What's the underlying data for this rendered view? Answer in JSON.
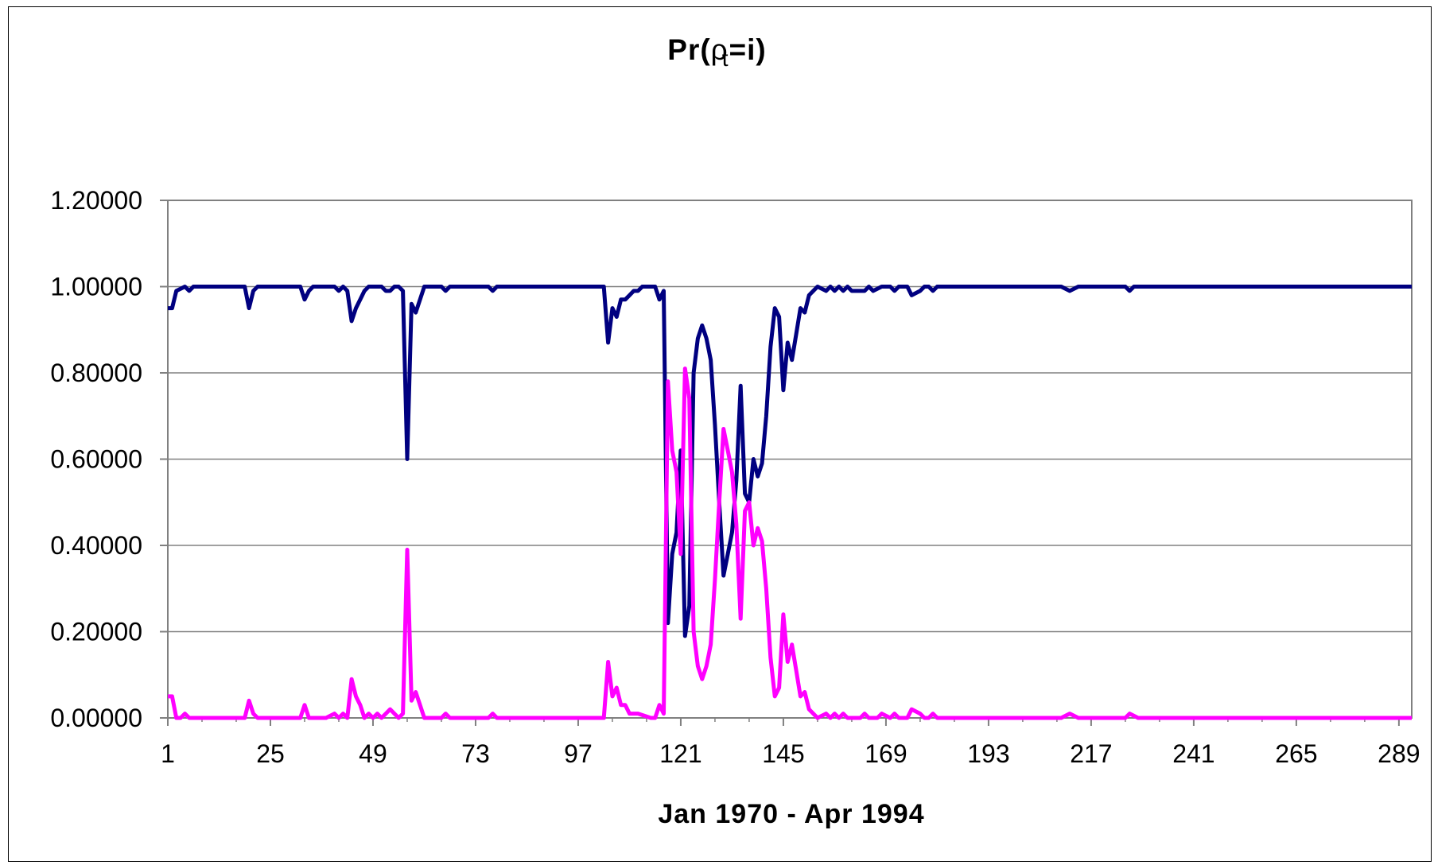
{
  "chart_data": {
    "type": "line",
    "title": "Pr(ρt=i)",
    "title_parts": {
      "prefix": "Pr(",
      "rho": "ρ",
      "sub": "t",
      "suffix": "=i)"
    },
    "xlabel": "Jan 1970 - Apr 1994",
    "ylabel": "",
    "xlim": [
      1,
      292
    ],
    "ylim": [
      0,
      1.2
    ],
    "x_tick_labels": [
      "1",
      "25",
      "49",
      "73",
      "97",
      "121",
      "145",
      "169",
      "193",
      "217",
      "241",
      "265",
      "289"
    ],
    "y_tick_labels": [
      "0.00000",
      "0.20000",
      "0.40000",
      "0.60000",
      "0.80000",
      "1.00000",
      "1.20000"
    ],
    "grid": true,
    "legend": "none",
    "series": [
      {
        "color": "#000080",
        "points": [
          [
            1,
            0.95
          ],
          [
            2,
            0.95
          ],
          [
            3,
            0.99
          ],
          [
            5,
            1.0
          ],
          [
            6,
            0.99
          ],
          [
            7,
            1.0
          ],
          [
            12,
            1.0
          ],
          [
            18,
            1.0
          ],
          [
            19,
            1.0
          ],
          [
            20,
            0.95
          ],
          [
            21,
            0.99
          ],
          [
            22,
            1.0
          ],
          [
            30,
            1.0
          ],
          [
            32,
            1.0
          ],
          [
            33,
            0.97
          ],
          [
            34,
            0.99
          ],
          [
            35,
            1.0
          ],
          [
            38,
            1.0
          ],
          [
            40,
            1.0
          ],
          [
            41,
            0.99
          ],
          [
            42,
            1.0
          ],
          [
            43,
            0.99
          ],
          [
            44,
            0.92
          ],
          [
            45,
            0.95
          ],
          [
            46,
            0.97
          ],
          [
            47,
            0.99
          ],
          [
            48,
            1.0
          ],
          [
            50,
            1.0
          ],
          [
            51,
            1.0
          ],
          [
            52,
            0.99
          ],
          [
            53,
            0.99
          ],
          [
            54,
            1.0
          ],
          [
            55,
            1.0
          ],
          [
            56,
            0.99
          ],
          [
            57,
            0.6
          ],
          [
            58,
            0.96
          ],
          [
            59,
            0.94
          ],
          [
            60,
            0.97
          ],
          [
            61,
            1.0
          ],
          [
            65,
            1.0
          ],
          [
            66,
            0.99
          ],
          [
            67,
            1.0
          ],
          [
            70,
            1.0
          ],
          [
            76,
            1.0
          ],
          [
            77,
            0.99
          ],
          [
            78,
            1.0
          ],
          [
            103,
            1.0
          ],
          [
            104,
            0.87
          ],
          [
            105,
            0.95
          ],
          [
            106,
            0.93
          ],
          [
            107,
            0.97
          ],
          [
            108,
            0.97
          ],
          [
            109,
            0.98
          ],
          [
            110,
            0.99
          ],
          [
            111,
            0.99
          ],
          [
            112,
            1.0
          ],
          [
            115,
            1.0
          ],
          [
            116,
            0.97
          ],
          [
            117,
            0.99
          ],
          [
            118,
            0.22
          ],
          [
            119,
            0.38
          ],
          [
            120,
            0.43
          ],
          [
            121,
            0.62
          ],
          [
            122,
            0.19
          ],
          [
            123,
            0.26
          ],
          [
            124,
            0.8
          ],
          [
            125,
            0.88
          ],
          [
            126,
            0.91
          ],
          [
            127,
            0.88
          ],
          [
            128,
            0.83
          ],
          [
            129,
            0.68
          ],
          [
            130,
            0.5
          ],
          [
            131,
            0.33
          ],
          [
            132,
            0.38
          ],
          [
            133,
            0.43
          ],
          [
            134,
            0.55
          ],
          [
            135,
            0.77
          ],
          [
            136,
            0.52
          ],
          [
            137,
            0.5
          ],
          [
            138,
            0.6
          ],
          [
            139,
            0.56
          ],
          [
            140,
            0.59
          ],
          [
            141,
            0.7
          ],
          [
            142,
            0.86
          ],
          [
            143,
            0.95
          ],
          [
            144,
            0.93
          ],
          [
            145,
            0.76
          ],
          [
            146,
            0.87
          ],
          [
            147,
            0.83
          ],
          [
            148,
            0.89
          ],
          [
            149,
            0.95
          ],
          [
            150,
            0.94
          ],
          [
            151,
            0.98
          ],
          [
            152,
            0.99
          ],
          [
            153,
            1.0
          ],
          [
            155,
            0.99
          ],
          [
            156,
            1.0
          ],
          [
            157,
            0.99
          ],
          [
            158,
            1.0
          ],
          [
            159,
            0.99
          ],
          [
            160,
            1.0
          ],
          [
            161,
            0.99
          ],
          [
            164,
            0.99
          ],
          [
            165,
            1.0
          ],
          [
            166,
            0.99
          ],
          [
            168,
            1.0
          ],
          [
            170,
            1.0
          ],
          [
            171,
            0.99
          ],
          [
            172,
            1.0
          ],
          [
            174,
            1.0
          ],
          [
            175,
            0.98
          ],
          [
            177,
            0.99
          ],
          [
            178,
            1.0
          ],
          [
            179,
            1.0
          ],
          [
            180,
            0.99
          ],
          [
            181,
            1.0
          ],
          [
            210,
            1.0
          ],
          [
            212,
            0.99
          ],
          [
            214,
            1.0
          ],
          [
            225,
            1.0
          ],
          [
            226,
            0.99
          ],
          [
            227,
            1.0
          ],
          [
            292,
            1.0
          ]
        ]
      },
      {
        "color": "#ff00ff",
        "points": [
          [
            1,
            0.05
          ],
          [
            2,
            0.05
          ],
          [
            3,
            0.0
          ],
          [
            4,
            0.0
          ],
          [
            5,
            0.01
          ],
          [
            6,
            0.0
          ],
          [
            19,
            0.0
          ],
          [
            20,
            0.04
          ],
          [
            21,
            0.01
          ],
          [
            22,
            0.0
          ],
          [
            32,
            0.0
          ],
          [
            33,
            0.03
          ],
          [
            34,
            0.0
          ],
          [
            38,
            0.0
          ],
          [
            40,
            0.01
          ],
          [
            41,
            0.0
          ],
          [
            42,
            0.01
          ],
          [
            43,
            0.0
          ],
          [
            44,
            0.09
          ],
          [
            45,
            0.05
          ],
          [
            46,
            0.03
          ],
          [
            47,
            0.0
          ],
          [
            48,
            0.01
          ],
          [
            49,
            0.0
          ],
          [
            50,
            0.01
          ],
          [
            51,
            0.0
          ],
          [
            52,
            0.01
          ],
          [
            53,
            0.02
          ],
          [
            54,
            0.01
          ],
          [
            55,
            0.0
          ],
          [
            56,
            0.01
          ],
          [
            57,
            0.39
          ],
          [
            58,
            0.04
          ],
          [
            59,
            0.06
          ],
          [
            60,
            0.03
          ],
          [
            61,
            0.0
          ],
          [
            65,
            0.0
          ],
          [
            66,
            0.01
          ],
          [
            67,
            0.0
          ],
          [
            76,
            0.0
          ],
          [
            77,
            0.01
          ],
          [
            78,
            0.0
          ],
          [
            103,
            0.0
          ],
          [
            104,
            0.13
          ],
          [
            105,
            0.05
          ],
          [
            106,
            0.07
          ],
          [
            107,
            0.03
          ],
          [
            108,
            0.03
          ],
          [
            109,
            0.01
          ],
          [
            110,
            0.01
          ],
          [
            111,
            0.01
          ],
          [
            114,
            0.0
          ],
          [
            115,
            0.0
          ],
          [
            116,
            0.03
          ],
          [
            117,
            0.01
          ],
          [
            118,
            0.78
          ],
          [
            119,
            0.62
          ],
          [
            120,
            0.57
          ],
          [
            121,
            0.38
          ],
          [
            122,
            0.81
          ],
          [
            123,
            0.74
          ],
          [
            124,
            0.2
          ],
          [
            125,
            0.12
          ],
          [
            126,
            0.09
          ],
          [
            127,
            0.12
          ],
          [
            128,
            0.17
          ],
          [
            129,
            0.32
          ],
          [
            130,
            0.5
          ],
          [
            131,
            0.67
          ],
          [
            132,
            0.62
          ],
          [
            133,
            0.57
          ],
          [
            134,
            0.45
          ],
          [
            135,
            0.23
          ],
          [
            136,
            0.48
          ],
          [
            137,
            0.5
          ],
          [
            138,
            0.4
          ],
          [
            139,
            0.44
          ],
          [
            140,
            0.41
          ],
          [
            141,
            0.3
          ],
          [
            142,
            0.14
          ],
          [
            143,
            0.05
          ],
          [
            144,
            0.07
          ],
          [
            145,
            0.24
          ],
          [
            146,
            0.13
          ],
          [
            147,
            0.17
          ],
          [
            148,
            0.11
          ],
          [
            149,
            0.05
          ],
          [
            150,
            0.06
          ],
          [
            151,
            0.02
          ],
          [
            152,
            0.01
          ],
          [
            153,
            0.0
          ],
          [
            155,
            0.01
          ],
          [
            156,
            0.0
          ],
          [
            157,
            0.01
          ],
          [
            158,
            0.0
          ],
          [
            159,
            0.01
          ],
          [
            160,
            0.0
          ],
          [
            163,
            0.0
          ],
          [
            164,
            0.01
          ],
          [
            165,
            0.0
          ],
          [
            167,
            0.0
          ],
          [
            168,
            0.01
          ],
          [
            170,
            0.0
          ],
          [
            171,
            0.01
          ],
          [
            172,
            0.0
          ],
          [
            174,
            0.0
          ],
          [
            175,
            0.02
          ],
          [
            177,
            0.01
          ],
          [
            178,
            0.0
          ],
          [
            179,
            0.0
          ],
          [
            180,
            0.01
          ],
          [
            181,
            0.0
          ],
          [
            210,
            0.0
          ],
          [
            212,
            0.01
          ],
          [
            214,
            0.0
          ],
          [
            225,
            0.0
          ],
          [
            226,
            0.01
          ],
          [
            228,
            0.0
          ],
          [
            292,
            0.0
          ]
        ]
      }
    ]
  }
}
